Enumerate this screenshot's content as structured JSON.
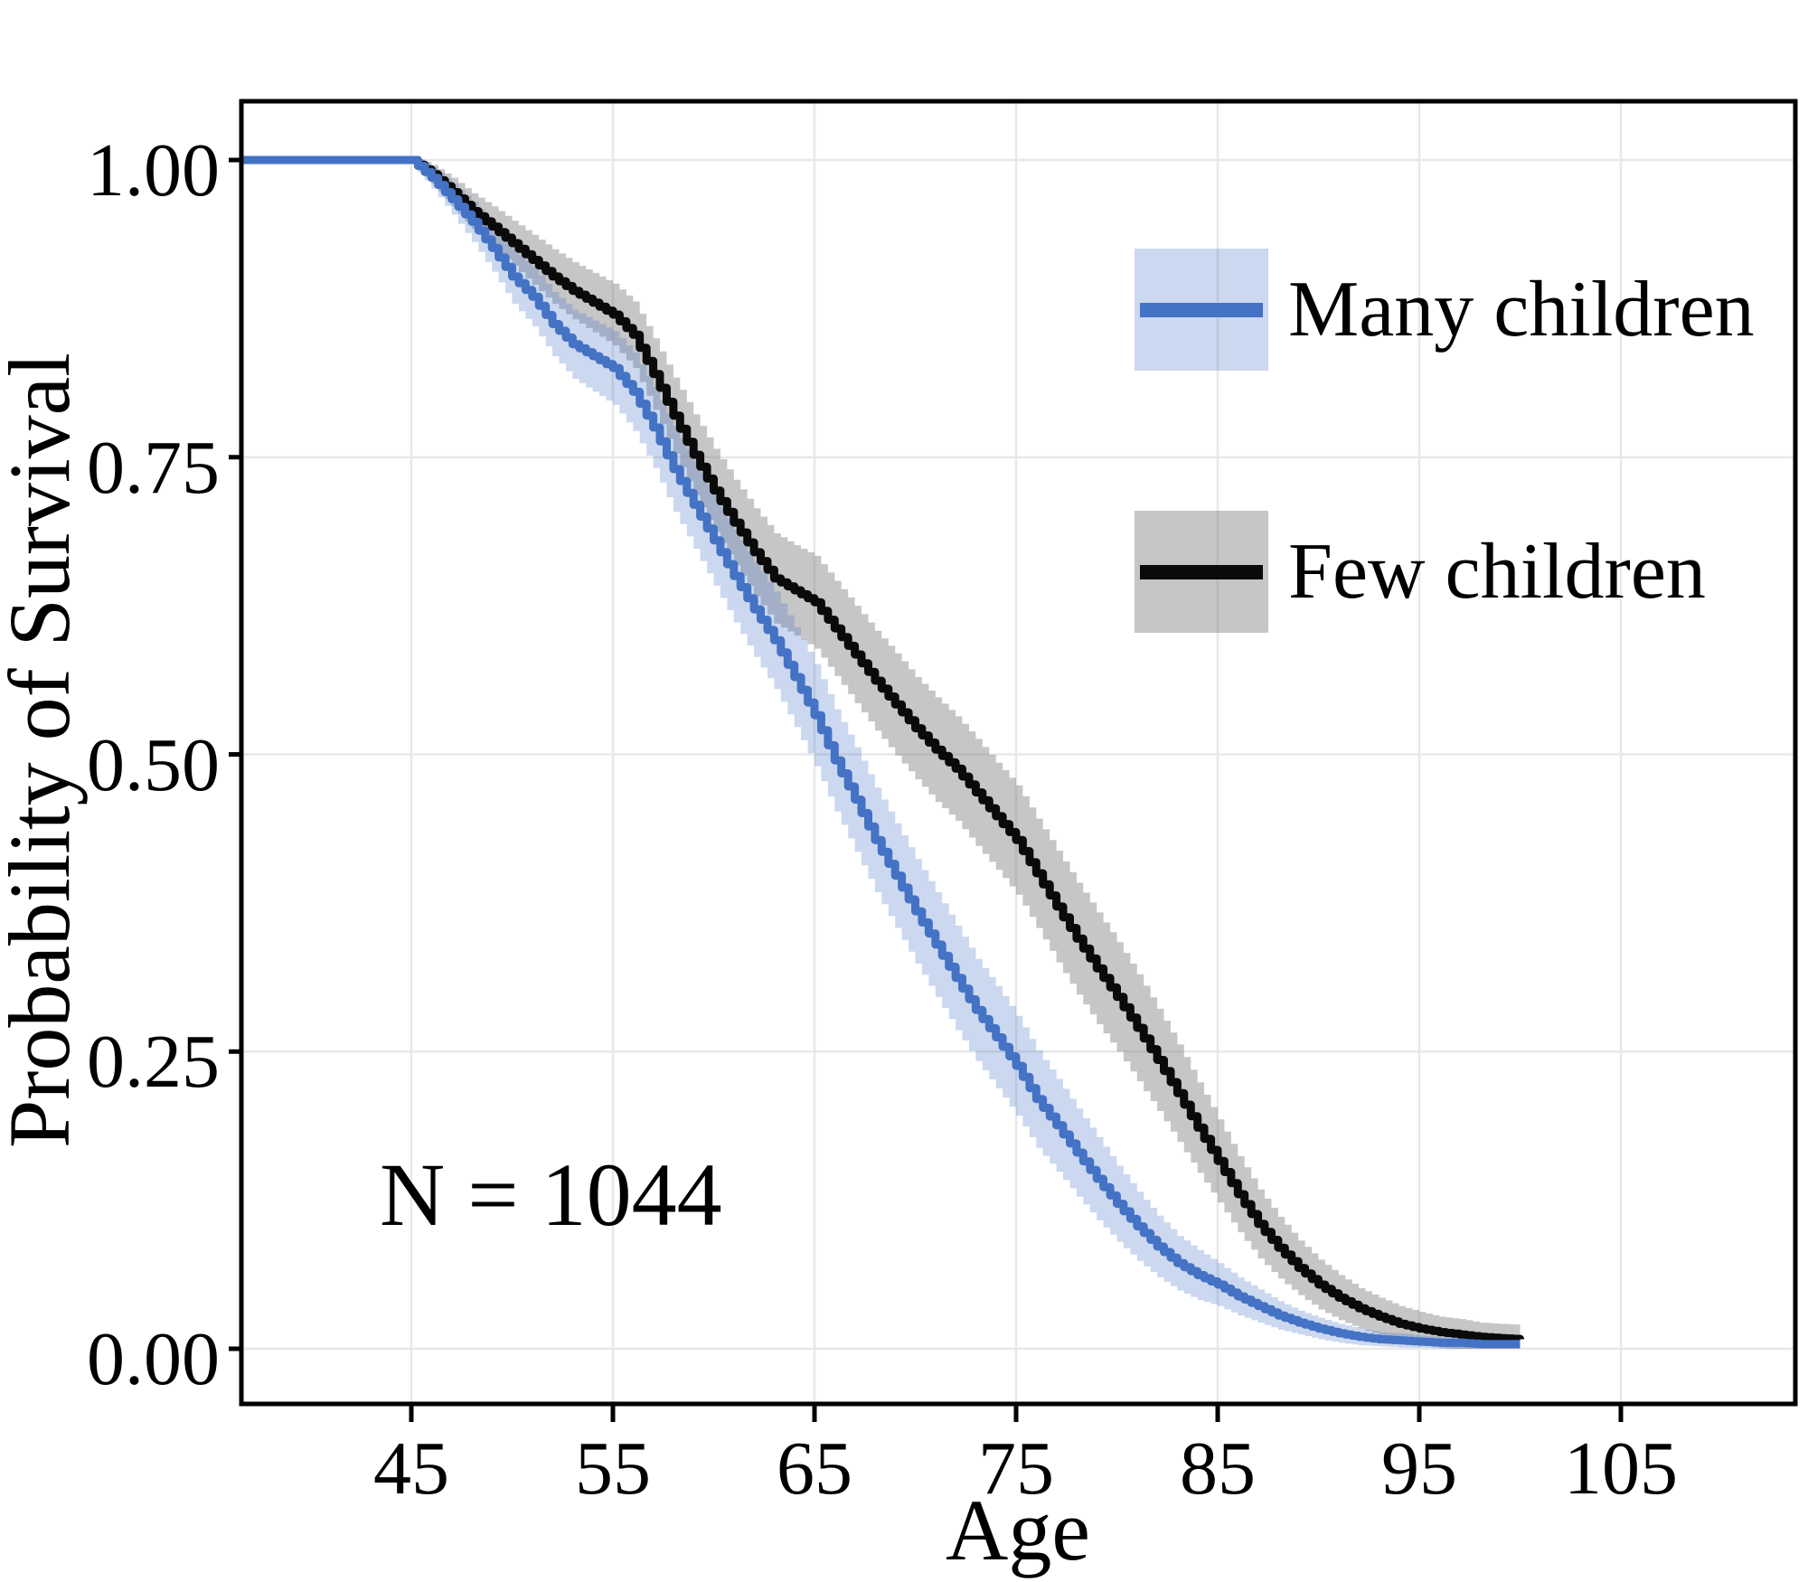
{
  "chart_data": {
    "type": "line",
    "chart_kind": "kaplan-meier-survival-curves",
    "title": "",
    "xlabel": "Age",
    "ylabel": "Probability of Survival",
    "annotation": "N = 1044",
    "legend_position": "upper-right-inside",
    "grid": "major-only",
    "x_ticks": [
      45,
      55,
      65,
      75,
      85,
      95,
      105
    ],
    "y_ticks": [
      0.0,
      0.25,
      0.5,
      0.75,
      1.0
    ],
    "y_tick_labels": [
      "0.00",
      "0.25",
      "0.50",
      "0.75",
      "1.00"
    ],
    "xlim": [
      36.6,
      113.6
    ],
    "ylim": [
      -0.046,
      1.049
    ],
    "colors": {
      "many_line": "#4472C4",
      "many_band": "rgba(68,114,196,0.28)",
      "few_line": "#0A0A0A",
      "few_band": "rgba(128,128,128,0.45)",
      "gridline": "#E8E8E8",
      "panel_border": "#000000",
      "background": "#FFFFFF"
    },
    "ages": [
      45,
      46,
      47,
      48,
      49,
      50,
      51,
      52,
      53,
      54,
      55,
      56,
      57,
      58,
      59,
      60,
      61,
      62,
      63,
      64,
      65,
      66,
      67,
      68,
      69,
      70,
      71,
      72,
      73,
      74,
      75,
      76,
      77,
      78,
      79,
      80,
      81,
      82,
      83,
      84,
      85,
      86,
      87,
      88,
      89,
      90,
      91,
      92,
      93,
      94,
      95,
      96,
      97,
      98,
      99,
      100
    ],
    "series": [
      {
        "name": "Many children",
        "values": [
          1.0,
          0.985,
          0.967,
          0.948,
          0.926,
          0.902,
          0.885,
          0.862,
          0.845,
          0.835,
          0.825,
          0.805,
          0.775,
          0.74,
          0.71,
          0.68,
          0.65,
          0.622,
          0.596,
          0.565,
          0.533,
          0.495,
          0.462,
          0.428,
          0.398,
          0.368,
          0.34,
          0.312,
          0.285,
          0.262,
          0.238,
          0.21,
          0.188,
          0.165,
          0.143,
          0.122,
          0.103,
          0.086,
          0.072,
          0.062,
          0.054,
          0.044,
          0.036,
          0.028,
          0.022,
          0.017,
          0.013,
          0.01,
          0.008,
          0.007,
          0.006,
          0.005,
          0.005,
          0.004,
          0.004,
          0.004
        ],
        "ci_half_width": [
          0.003,
          0.009,
          0.013,
          0.017,
          0.02,
          0.023,
          0.025,
          0.027,
          0.029,
          0.03,
          0.031,
          0.033,
          0.034,
          0.036,
          0.037,
          0.038,
          0.039,
          0.04,
          0.041,
          0.042,
          0.043,
          0.043,
          0.044,
          0.044,
          0.044,
          0.044,
          0.044,
          0.044,
          0.043,
          0.043,
          0.042,
          0.041,
          0.039,
          0.037,
          0.035,
          0.032,
          0.029,
          0.026,
          0.023,
          0.021,
          0.018,
          0.016,
          0.014,
          0.012,
          0.01,
          0.009,
          0.008,
          0.007,
          0.006,
          0.006,
          0.005,
          0.005,
          0.005,
          0.005,
          0.005,
          0.005
        ]
      },
      {
        "name": "Few children",
        "values": [
          1.0,
          0.988,
          0.973,
          0.957,
          0.944,
          0.93,
          0.916,
          0.902,
          0.89,
          0.88,
          0.87,
          0.853,
          0.82,
          0.785,
          0.752,
          0.722,
          0.695,
          0.67,
          0.648,
          0.638,
          0.628,
          0.606,
          0.584,
          0.562,
          0.542,
          0.522,
          0.504,
          0.488,
          0.468,
          0.448,
          0.428,
          0.4,
          0.372,
          0.345,
          0.32,
          0.296,
          0.27,
          0.243,
          0.215,
          0.186,
          0.158,
          0.13,
          0.105,
          0.085,
          0.068,
          0.054,
          0.043,
          0.034,
          0.027,
          0.021,
          0.017,
          0.014,
          0.012,
          0.01,
          0.009,
          0.008
        ],
        "ci_half_width": [
          0.003,
          0.008,
          0.012,
          0.015,
          0.017,
          0.019,
          0.021,
          0.023,
          0.024,
          0.025,
          0.026,
          0.028,
          0.03,
          0.032,
          0.034,
          0.035,
          0.036,
          0.037,
          0.038,
          0.038,
          0.039,
          0.04,
          0.041,
          0.042,
          0.043,
          0.043,
          0.044,
          0.044,
          0.045,
          0.045,
          0.046,
          0.046,
          0.047,
          0.047,
          0.047,
          0.046,
          0.045,
          0.043,
          0.041,
          0.038,
          0.035,
          0.032,
          0.029,
          0.026,
          0.023,
          0.021,
          0.019,
          0.017,
          0.016,
          0.015,
          0.014,
          0.013,
          0.013,
          0.012,
          0.012,
          0.012
        ]
      }
    ]
  }
}
